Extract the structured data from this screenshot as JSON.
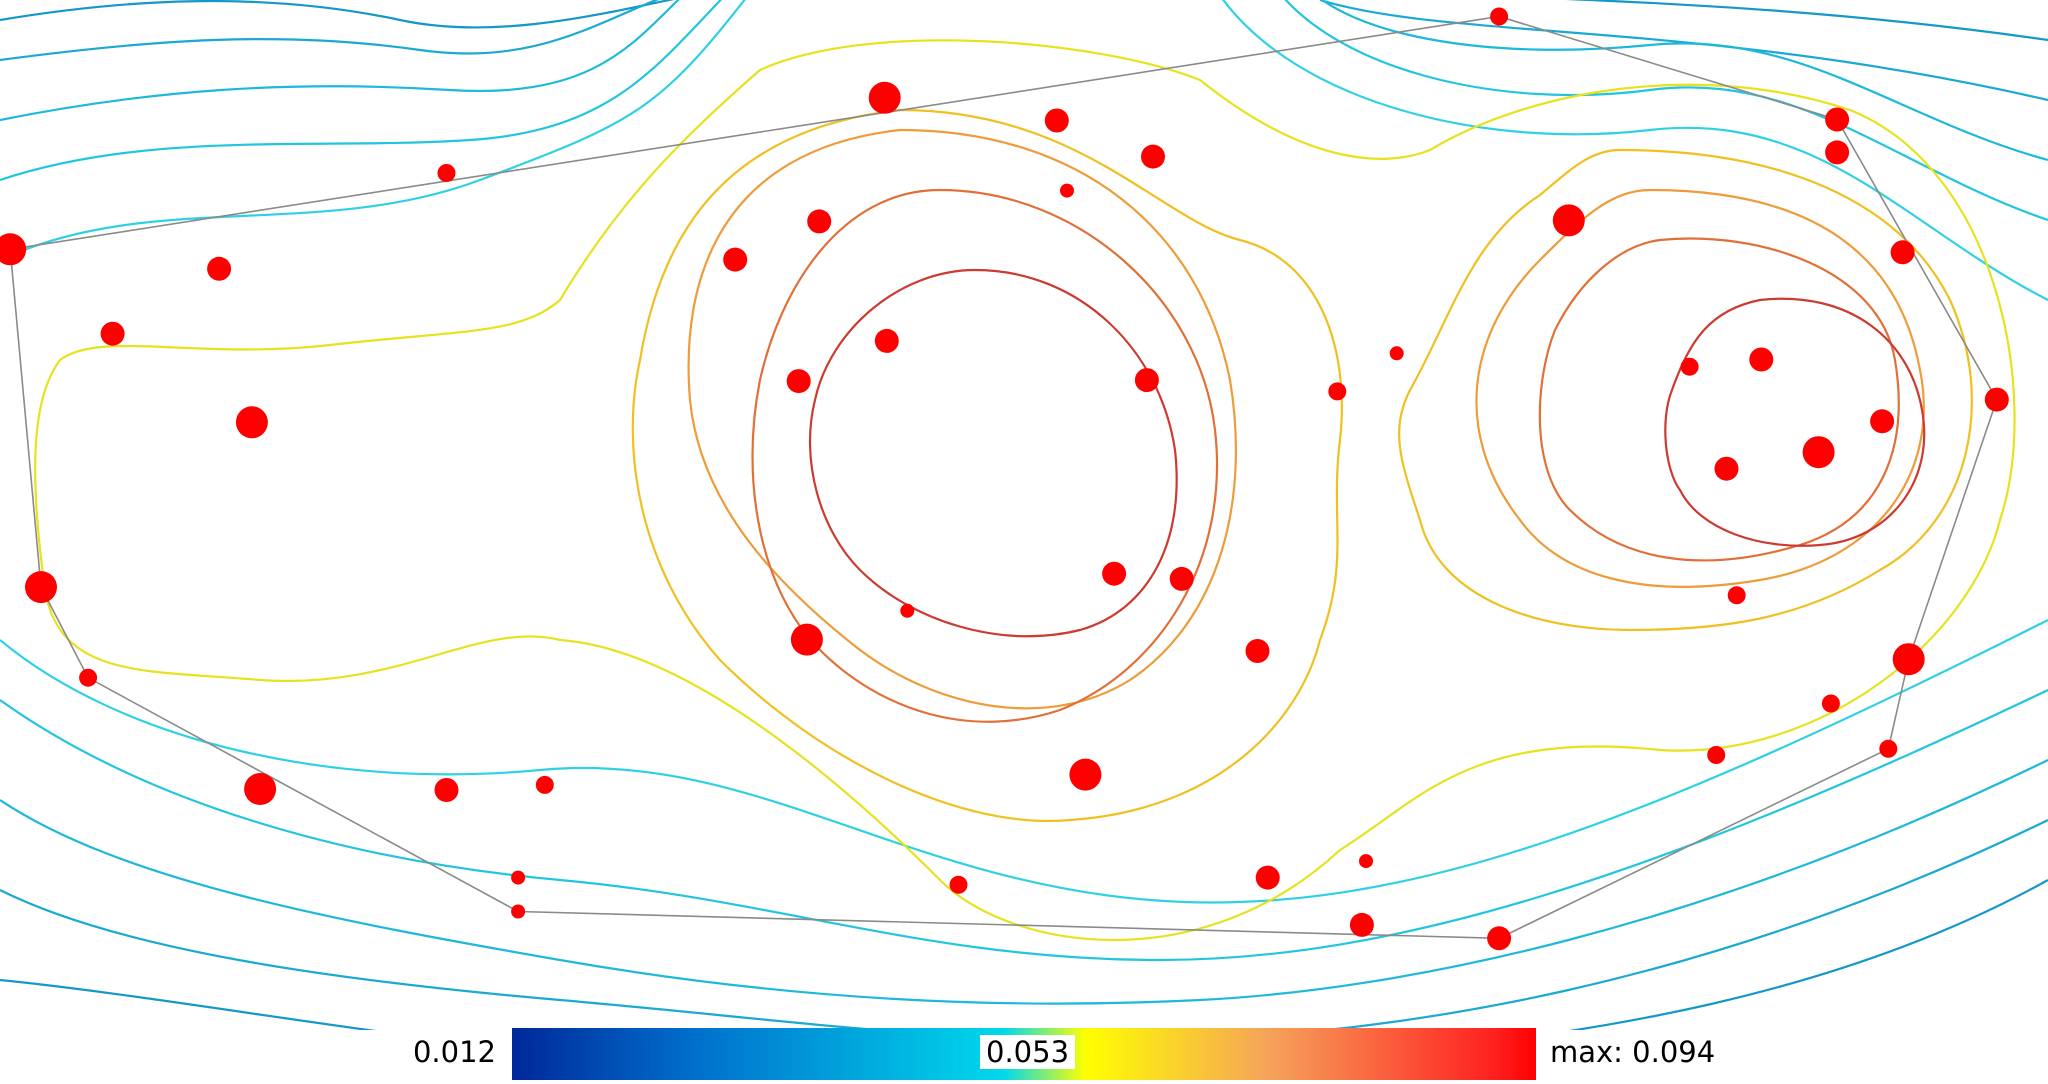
{
  "chart_data": {
    "type": "contour",
    "title": "",
    "colorbar": {
      "min": 0.012,
      "mid": 0.053,
      "max": 0.094,
      "min_label": "0.012",
      "mid_label": "0.053",
      "max_label": "max: 0.094",
      "colors": [
        "#00289a",
        "#0070cc",
        "#00d8ec",
        "#ffff00",
        "#f5a25a",
        "#ff2020",
        "#ff0000"
      ]
    },
    "contour_levels": [
      {
        "level": 0.016,
        "color": "#1597c9",
        "rings": [
          "A"
        ]
      },
      {
        "level": 0.022,
        "color": "#1aa9d2",
        "rings": [
          "B"
        ]
      },
      {
        "level": 0.028,
        "color": "#1db8da",
        "rings": [
          "C"
        ]
      },
      {
        "level": 0.035,
        "color": "#22c5df",
        "rings": [
          "D"
        ]
      },
      {
        "level": 0.042,
        "color": "#2fd0e4",
        "rings": [
          "E"
        ]
      },
      {
        "level": 0.052,
        "color": "#e6e21e",
        "rings": [
          "F"
        ]
      },
      {
        "level": 0.06,
        "color": "#efc020",
        "rings": [
          "G1",
          "G2"
        ]
      },
      {
        "level": 0.068,
        "color": "#ee9b3a",
        "rings": [
          "H1",
          "H2"
        ]
      },
      {
        "level": 0.076,
        "color": "#e07038",
        "rings": [
          "I1",
          "I2"
        ]
      },
      {
        "level": 0.084,
        "color": "#cc3a30",
        "rings": [
          "J1",
          "J2"
        ]
      }
    ],
    "points": [
      {
        "x": 0.005,
        "y": 0.242,
        "size": 3
      },
      {
        "x": 0.218,
        "y": 0.168,
        "size": 1
      },
      {
        "x": 0.432,
        "y": 0.095,
        "size": 3
      },
      {
        "x": 0.732,
        "y": 0.016,
        "size": 1
      },
      {
        "x": 0.516,
        "y": 0.117,
        "size": 2
      },
      {
        "x": 0.563,
        "y": 0.152,
        "size": 2
      },
      {
        "x": 0.521,
        "y": 0.185,
        "size": 0
      },
      {
        "x": 0.4,
        "y": 0.215,
        "size": 2
      },
      {
        "x": 0.359,
        "y": 0.252,
        "size": 2
      },
      {
        "x": 0.107,
        "y": 0.261,
        "size": 2
      },
      {
        "x": 0.055,
        "y": 0.324,
        "size": 2
      },
      {
        "x": 0.123,
        "y": 0.41,
        "size": 3
      },
      {
        "x": 0.433,
        "y": 0.331,
        "size": 2
      },
      {
        "x": 0.39,
        "y": 0.37,
        "size": 2
      },
      {
        "x": 0.56,
        "y": 0.369,
        "size": 2
      },
      {
        "x": 0.682,
        "y": 0.343,
        "size": 0
      },
      {
        "x": 0.653,
        "y": 0.38,
        "size": 1
      },
      {
        "x": 0.766,
        "y": 0.214,
        "size": 3
      },
      {
        "x": 0.897,
        "y": 0.116,
        "size": 2
      },
      {
        "x": 0.897,
        "y": 0.148,
        "size": 2
      },
      {
        "x": 0.929,
        "y": 0.245,
        "size": 2
      },
      {
        "x": 0.975,
        "y": 0.388,
        "size": 2
      },
      {
        "x": 0.825,
        "y": 0.356,
        "size": 1
      },
      {
        "x": 0.86,
        "y": 0.349,
        "size": 2
      },
      {
        "x": 0.919,
        "y": 0.409,
        "size": 2
      },
      {
        "x": 0.888,
        "y": 0.439,
        "size": 3
      },
      {
        "x": 0.843,
        "y": 0.455,
        "size": 2
      },
      {
        "x": 0.02,
        "y": 0.57,
        "size": 3
      },
      {
        "x": 0.544,
        "y": 0.557,
        "size": 2
      },
      {
        "x": 0.577,
        "y": 0.562,
        "size": 2
      },
      {
        "x": 0.443,
        "y": 0.593,
        "size": 0
      },
      {
        "x": 0.394,
        "y": 0.621,
        "size": 3
      },
      {
        "x": 0.614,
        "y": 0.632,
        "size": 2
      },
      {
        "x": 0.848,
        "y": 0.578,
        "size": 1
      },
      {
        "x": 0.932,
        "y": 0.64,
        "size": 3
      },
      {
        "x": 0.894,
        "y": 0.683,
        "size": 1
      },
      {
        "x": 0.043,
        "y": 0.658,
        "size": 1
      },
      {
        "x": 0.127,
        "y": 0.766,
        "size": 3
      },
      {
        "x": 0.218,
        "y": 0.767,
        "size": 2
      },
      {
        "x": 0.266,
        "y": 0.762,
        "size": 1
      },
      {
        "x": 0.53,
        "y": 0.752,
        "size": 3
      },
      {
        "x": 0.838,
        "y": 0.733,
        "size": 1
      },
      {
        "x": 0.922,
        "y": 0.727,
        "size": 1
      },
      {
        "x": 0.253,
        "y": 0.852,
        "size": 0
      },
      {
        "x": 0.253,
        "y": 0.885,
        "size": 0
      },
      {
        "x": 0.468,
        "y": 0.859,
        "size": 1
      },
      {
        "x": 0.619,
        "y": 0.852,
        "size": 2
      },
      {
        "x": 0.667,
        "y": 0.836,
        "size": 0
      },
      {
        "x": 0.665,
        "y": 0.898,
        "size": 2
      },
      {
        "x": 0.732,
        "y": 0.911,
        "size": 2
      }
    ],
    "hull": [
      [
        0.005,
        0.242
      ],
      [
        0.732,
        0.016
      ],
      [
        0.897,
        0.116
      ],
      [
        0.975,
        0.388
      ],
      [
        0.932,
        0.64
      ],
      [
        0.922,
        0.727
      ],
      [
        0.732,
        0.911
      ],
      [
        0.253,
        0.885
      ],
      [
        0.043,
        0.658
      ],
      [
        0.02,
        0.57
      ],
      [
        0.005,
        0.242
      ]
    ],
    "grid": false,
    "legend": "bottom"
  }
}
